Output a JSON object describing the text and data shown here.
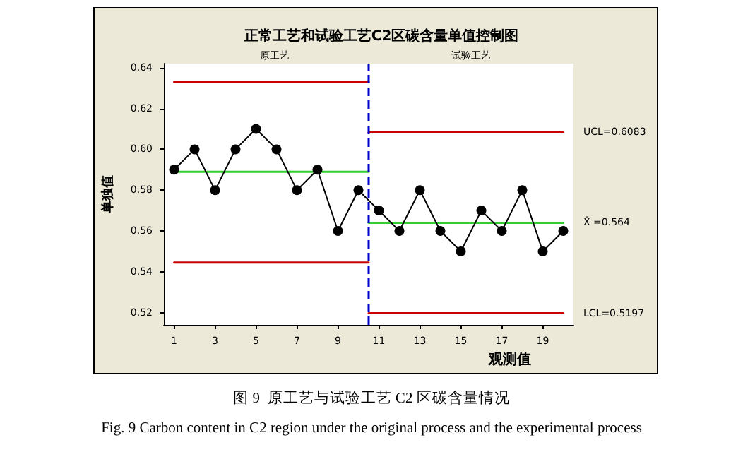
{
  "chart_data": {
    "type": "line",
    "title": "正常工艺和试验工艺C2区碳含量单值控制图",
    "xlabel": "观测值",
    "ylabel": "单独值",
    "xlim": [
      0.5,
      20.5
    ],
    "xticks": [
      1,
      3,
      5,
      7,
      9,
      11,
      13,
      15,
      17,
      19
    ],
    "ylim": [
      0.514,
      0.642
    ],
    "yticks": [
      0.52,
      0.54,
      0.56,
      0.58,
      {
        "value": 0.6,
        "label": "0.60"
      },
      0.62,
      0.64
    ],
    "series": [
      {
        "color": "#000000",
        "marker": "circle",
        "x": [
          1,
          2,
          3,
          4,
          5,
          6,
          7,
          8,
          9,
          10,
          11,
          12,
          13,
          14,
          15,
          16,
          17,
          18,
          19,
          20
        ],
        "values": [
          0.59,
          0.6,
          0.58,
          0.6,
          0.61,
          0.6,
          0.58,
          0.59,
          0.56,
          0.58,
          0.57,
          0.56,
          0.58,
          0.56,
          0.55,
          0.57,
          0.56,
          0.58,
          0.55,
          0.56
        ]
      },
      {
        "color": "#cc0000",
        "marker": "none",
        "x": [
          1,
          10.5
        ],
        "values": [
          0.633,
          0.633
        ]
      },
      {
        "color": "#33cc33",
        "marker": "none",
        "x": [
          1,
          10.5
        ],
        "values": [
          0.589,
          0.589
        ]
      },
      {
        "color": "#cc0000",
        "marker": "none",
        "x": [
          1,
          10.5
        ],
        "values": [
          0.5445,
          0.5445
        ]
      },
      {
        "color": "#cc0000",
        "marker": "none",
        "x": [
          10.5,
          20
        ],
        "values": [
          0.6083,
          0.6083
        ]
      },
      {
        "color": "#33cc33",
        "marker": "none",
        "x": [
          10.5,
          20
        ],
        "values": [
          0.564,
          0.564
        ]
      },
      {
        "color": "#cc0000",
        "marker": "none",
        "x": [
          10.5,
          20
        ],
        "values": [
          0.5197,
          0.5197
        ]
      }
    ],
    "ref_lines": [
      {
        "axis": "x",
        "value": 10.5,
        "color": "#0000cc",
        "line_style": "dashed"
      }
    ],
    "annotations": [
      "原工艺",
      "试验工艺",
      "UCL=0.6083",
      "X̄ =0.564",
      "LCL=0.5197",
      "图 9  原工艺与试验工艺 C2 区碳含量情况",
      "Fig. 9 Carbon content in C2 region under the original process and the experimental process"
    ],
    "line_style": "solid",
    "grid": false
  }
}
